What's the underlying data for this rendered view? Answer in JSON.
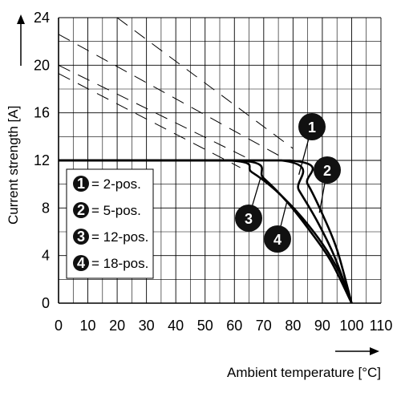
{
  "chart_data": {
    "type": "line",
    "xlabel": "Ambient temperature [°C]",
    "ylabel": "Current strength [A]",
    "xlim": [
      0,
      110
    ],
    "ylim": [
      0,
      24
    ],
    "x_ticks": [
      "0",
      "10",
      "20",
      "30",
      "40",
      "50",
      "60",
      "70",
      "80",
      "90",
      "100",
      "110"
    ],
    "y_ticks": [
      "0",
      "4",
      "8",
      "12",
      "16",
      "20",
      "24"
    ],
    "grid": true,
    "legend_placement": "lower-left",
    "series": [
      {
        "marker": "1",
        "name": "= 2-pos.",
        "x": [
          0,
          79,
          85,
          90,
          95,
          100
        ],
        "y": [
          12,
          12,
          10,
          7.5,
          4.5,
          0
        ],
        "dashed_x": [
          20,
          80
        ],
        "dashed_y": [
          24,
          13
        ]
      },
      {
        "marker": "2",
        "name": "= 5-pos.",
        "x": [
          0,
          76,
          82,
          88,
          94,
          100
        ],
        "y": [
          12,
          12,
          9.5,
          7,
          4,
          0
        ],
        "dashed_x": [
          0,
          76
        ],
        "dashed_y": [
          22.6,
          12.3
        ]
      },
      {
        "marker": "3",
        "name": "= 12-pos.",
        "x": [
          0,
          58,
          66,
          74,
          82,
          90,
          96,
          100
        ],
        "y": [
          12,
          12,
          11,
          9.5,
          7.5,
          5,
          2.5,
          0
        ],
        "dashed_x": [
          0,
          62
        ],
        "dashed_y": [
          19.3,
          11.4
        ]
      },
      {
        "marker": "4",
        "name": "= 18-pos.",
        "x": [
          0,
          62,
          70,
          78,
          86,
          93,
          100
        ],
        "y": [
          12,
          12,
          10.5,
          8.5,
          6,
          3.5,
          0
        ],
        "dashed_x": [
          0,
          66
        ],
        "dashed_y": [
          20,
          12
        ]
      }
    ]
  },
  "colors": {
    "line": "#000000",
    "grid": "#000000",
    "marker_fill": "#111111",
    "marker_text": "#ffffff"
  }
}
